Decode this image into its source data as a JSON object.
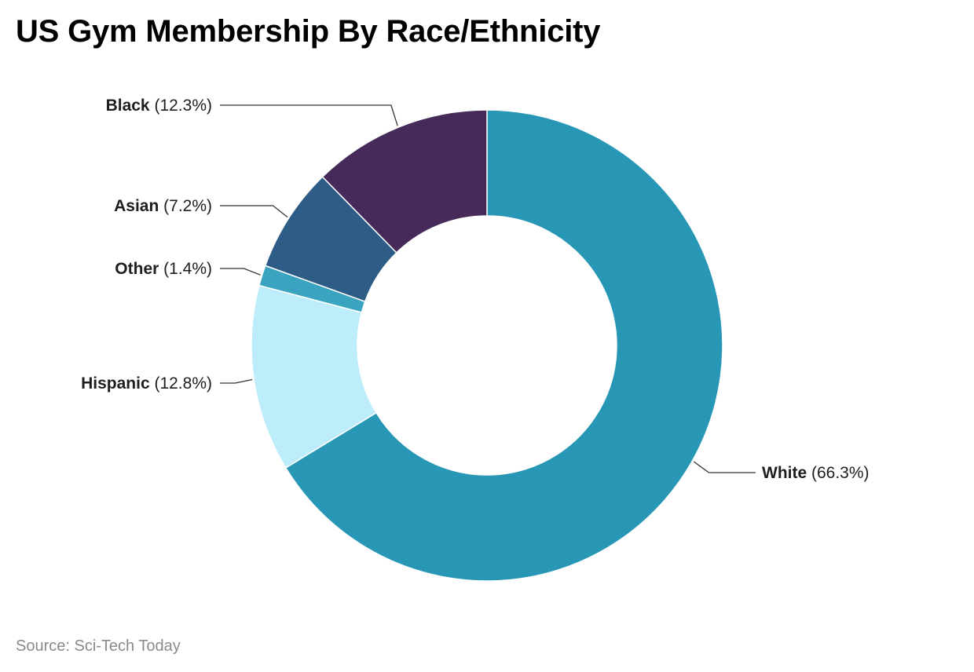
{
  "title": "US Gym Membership By Race/Ethnicity",
  "source": "Source: Sci-Tech Today",
  "chart_data": {
    "type": "pie",
    "style": "donut",
    "title": "US Gym Membership By Race/Ethnicity",
    "slices": [
      {
        "label": "White",
        "value": 66.3,
        "display": "(66.3%)",
        "color": "#2897b5"
      },
      {
        "label": "Hispanic",
        "value": 12.8,
        "display": "(12.8%)",
        "color": "#bdedfb"
      },
      {
        "label": "Other",
        "value": 1.4,
        "display": "(1.4%)",
        "color": "#3aa3bf"
      },
      {
        "label": "Asian",
        "value": 7.2,
        "display": "(7.2%)",
        "color": "#2d5c86"
      },
      {
        "label": "Black",
        "value": 12.3,
        "display": "(12.3%)",
        "color": "#462b5a"
      }
    ],
    "legend": "none",
    "labels": "outside with leader lines"
  }
}
